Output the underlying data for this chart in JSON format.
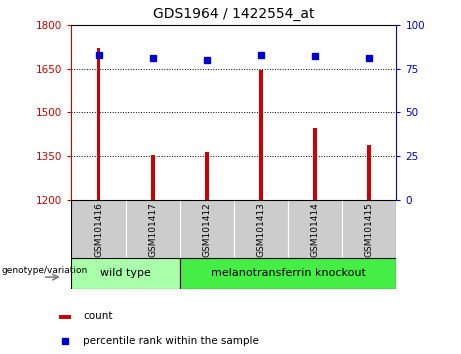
{
  "title": "GDS1964 / 1422554_at",
  "categories": [
    "GSM101416",
    "GSM101417",
    "GSM101412",
    "GSM101413",
    "GSM101414",
    "GSM101415"
  ],
  "bar_values": [
    1720,
    1355,
    1365,
    1645,
    1445,
    1390
  ],
  "scatter_values": [
    83,
    81,
    80,
    83,
    82,
    81
  ],
  "bar_color": "#cc0000",
  "scatter_color": "#0000cc",
  "ylim_left": [
    1200,
    1800
  ],
  "ylim_right": [
    0,
    100
  ],
  "yticks_left": [
    1200,
    1350,
    1500,
    1650,
    1800
  ],
  "yticks_right": [
    0,
    25,
    50,
    75,
    100
  ],
  "grid_lines": [
    1350,
    1500,
    1650
  ],
  "group1_label": "wild type",
  "group2_label": "melanotransferrin knockout",
  "group_label_prefix": "genotype/variation",
  "group1_color": "#aaffaa",
  "group2_color": "#44ee44",
  "tick_bg_color": "#cccccc",
  "legend_count_label": "count",
  "legend_pct_label": "percentile rank within the sample",
  "bar_bottom": 1200,
  "bar_width": 0.07,
  "group1_count": 2,
  "group2_count": 4
}
